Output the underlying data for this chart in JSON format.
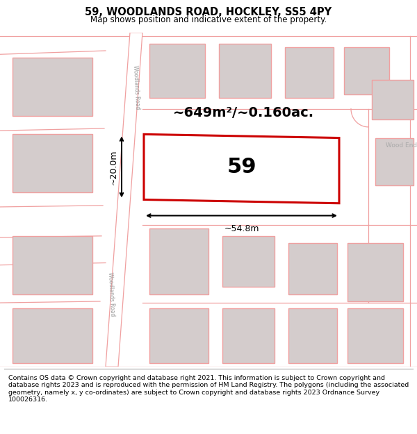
{
  "title": "59, WOODLANDS ROAD, HOCKLEY, SS5 4PY",
  "subtitle": "Map shows position and indicative extent of the property.",
  "footer": "Contains OS data © Crown copyright and database right 2021. This information is subject to Crown copyright and database rights 2023 and is reproduced with the permission of HM Land Registry. The polygons (including the associated geometry, namely x, y co-ordinates) are subject to Crown copyright and database rights 2023 Ordnance Survey 100026316.",
  "bg_color": "#f5eeee",
  "map_bg": "#f5eeee",
  "plot_border_color": "#cc0000",
  "road_line_color": "#f0a0a0",
  "road_fill": "#ffffff",
  "building_fill": "#d4cccc",
  "building_edge": "#f0a0a0",
  "area_text": "~649m²/~0.160ac.",
  "plot_number": "59",
  "dim_width": "~54.8m",
  "dim_height": "~20.0m",
  "road_label_top": "Woodlands Road",
  "road_label_bottom": "Woodlands Road",
  "road_label_right": "Wood End"
}
